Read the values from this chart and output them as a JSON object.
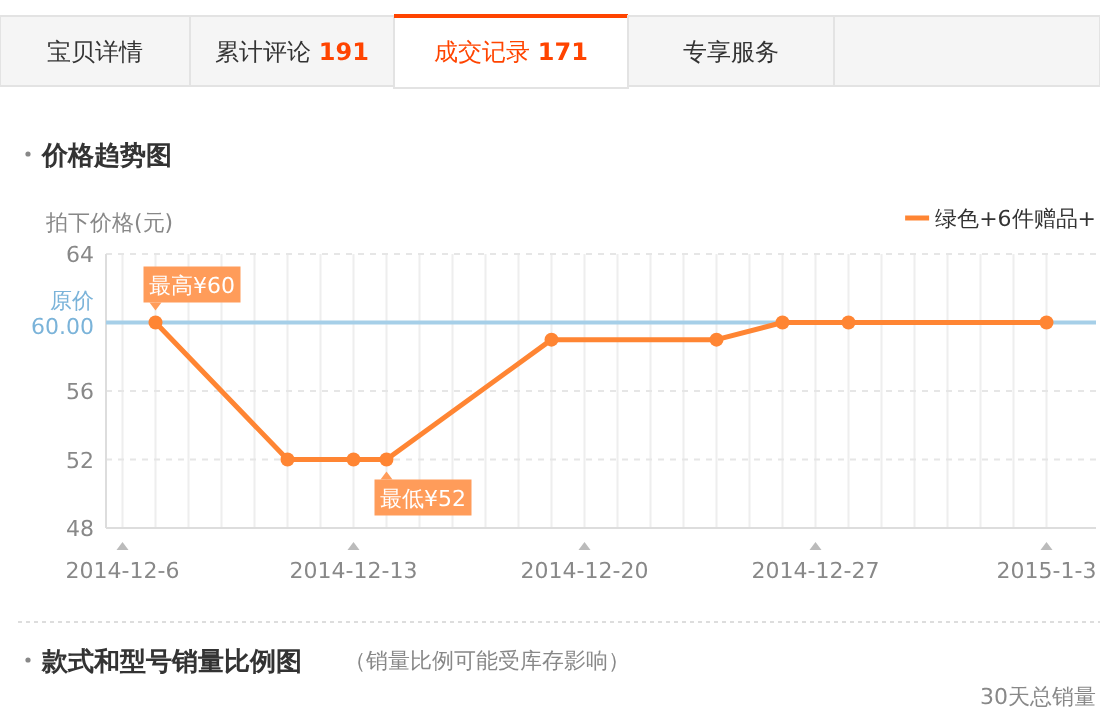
{
  "chart_data": {
    "type": "line",
    "title": "价格趋势图",
    "ylabel": "拍下价格(元)",
    "x": [
      "2014-12-07",
      "2014-12-11",
      "2014-12-13",
      "2014-12-14",
      "2014-12-19",
      "2014-12-24",
      "2014-12-26",
      "2014-12-28",
      "2015-01-03"
    ],
    "series": [
      {
        "name": "绿色+6件赠品+",
        "color": "#ff8533",
        "values": [
          60,
          52,
          52,
          52,
          59,
          59,
          60,
          60,
          60
        ]
      }
    ],
    "xlim": [
      "2014-12-05T12:00",
      "2015-01-04T12:00"
    ],
    "xticks": [
      {
        "value": "2014-12-06",
        "label": "2014-12-6"
      },
      {
        "value": "2014-12-07",
        "label": null
      },
      {
        "value": "2014-12-08",
        "label": null
      },
      {
        "value": "2014-12-09",
        "label": null
      },
      {
        "value": "2014-12-10",
        "label": null
      },
      {
        "value": "2014-12-11",
        "label": null
      },
      {
        "value": "2014-12-12",
        "label": null
      },
      {
        "value": "2014-12-13",
        "label": "2014-12-13"
      },
      {
        "value": "2014-12-14",
        "label": null
      },
      {
        "value": "2014-12-15",
        "label": null
      },
      {
        "value": "2014-12-16",
        "label": null
      },
      {
        "value": "2014-12-17",
        "label": null
      },
      {
        "value": "2014-12-18",
        "label": null
      },
      {
        "value": "2014-12-19",
        "label": null
      },
      {
        "value": "2014-12-20",
        "label": "2014-12-20"
      },
      {
        "value": "2014-12-21",
        "label": null
      },
      {
        "value": "2014-12-22",
        "label": null
      },
      {
        "value": "2014-12-23",
        "label": null
      },
      {
        "value": "2014-12-24",
        "label": null
      },
      {
        "value": "2014-12-25",
        "label": null
      },
      {
        "value": "2014-12-26",
        "label": null
      },
      {
        "value": "2014-12-27",
        "label": "2014-12-27"
      },
      {
        "value": "2014-12-28",
        "label": null
      },
      {
        "value": "2014-12-29",
        "label": null
      },
      {
        "value": "2014-12-30",
        "label": null
      },
      {
        "value": "2014-12-31",
        "label": null
      },
      {
        "value": "2015-01-01",
        "label": null
      },
      {
        "value": "2015-01-02",
        "label": null
      },
      {
        "value": "2015-01-03",
        "label": "2015-1-3"
      }
    ],
    "ylim": [
      48,
      64
    ],
    "yticks": [
      48,
      52,
      56,
      64
    ],
    "ref_lines": [
      {
        "axis": "y",
        "value": 60,
        "label": "原价\n60.00",
        "color": "#a6cfe8"
      }
    ],
    "grid": true,
    "marker": "circle",
    "line_style": "solid",
    "legend": "top right",
    "annotations": [
      "宝贝详情",
      "累计评论 191",
      "成交记录 171",
      "专享服务",
      "款式和型号销量比例图",
      "（销量比例可能受库存影响）",
      "30天总销量",
      {
        "text": "最高¥60",
        "x": "2014-12-07",
        "y": 60
      },
      {
        "text": "最低¥52",
        "x": "2014-12-14",
        "y": 52
      }
    ]
  }
}
